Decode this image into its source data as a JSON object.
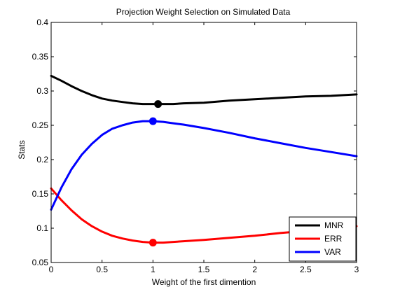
{
  "chart_data": {
    "type": "line",
    "title": "Projection Weight Selection on Simulated Data",
    "xlabel": "Weight of the first dimention",
    "ylabel": "Stats",
    "xlim": [
      0,
      3
    ],
    "ylim": [
      0.05,
      0.4
    ],
    "x_ticks": [
      0,
      0.5,
      1,
      1.5,
      2,
      2.5,
      3
    ],
    "x_tick_labels": [
      "0",
      "0.5",
      "1",
      "1.5",
      "2",
      "2.5",
      "3"
    ],
    "y_ticks": [
      0.05,
      0.1,
      0.15,
      0.2,
      0.25,
      0.3,
      0.35,
      0.4
    ],
    "y_tick_labels": [
      "0.05",
      "0.1",
      "0.15",
      "0.2",
      "0.25",
      "0.3",
      "0.35",
      "0.4"
    ],
    "grid": false,
    "legend_position": "bottom-right",
    "series": [
      {
        "name": "MNR",
        "color": "#000000",
        "x": [
          0,
          0.1,
          0.2,
          0.3,
          0.4,
          0.5,
          0.6,
          0.7,
          0.8,
          0.9,
          1.0,
          1.05,
          1.1,
          1.2,
          1.3,
          1.5,
          1.75,
          2.0,
          2.25,
          2.5,
          2.75,
          3.0
        ],
        "y": [
          0.322,
          0.315,
          0.307,
          0.3,
          0.294,
          0.289,
          0.286,
          0.284,
          0.282,
          0.281,
          0.281,
          0.281,
          0.281,
          0.281,
          0.282,
          0.283,
          0.286,
          0.288,
          0.29,
          0.292,
          0.293,
          0.295
        ],
        "marker": {
          "x": 1.05,
          "y": 0.281
        }
      },
      {
        "name": "ERR",
        "color": "#ff0000",
        "x": [
          0,
          0.1,
          0.2,
          0.3,
          0.4,
          0.5,
          0.6,
          0.7,
          0.8,
          0.9,
          1.0,
          1.1,
          1.2,
          1.3,
          1.5,
          1.75,
          2.0,
          2.25,
          2.5,
          2.75,
          3.0
        ],
        "y": [
          0.158,
          0.141,
          0.126,
          0.113,
          0.103,
          0.095,
          0.089,
          0.085,
          0.082,
          0.08,
          0.079,
          0.079,
          0.08,
          0.081,
          0.083,
          0.086,
          0.089,
          0.093,
          0.096,
          0.1,
          0.103
        ],
        "marker": {
          "x": 1.0,
          "y": 0.079
        }
      },
      {
        "name": "VAR",
        "color": "#0000ff",
        "x": [
          0,
          0.1,
          0.2,
          0.3,
          0.4,
          0.5,
          0.6,
          0.7,
          0.8,
          0.9,
          1.0,
          1.1,
          1.2,
          1.3,
          1.5,
          1.75,
          2.0,
          2.25,
          2.5,
          2.75,
          3.0
        ],
        "y": [
          0.127,
          0.159,
          0.186,
          0.207,
          0.223,
          0.236,
          0.245,
          0.25,
          0.254,
          0.256,
          0.256,
          0.255,
          0.253,
          0.251,
          0.246,
          0.239,
          0.231,
          0.224,
          0.217,
          0.211,
          0.205
        ],
        "marker": {
          "x": 1.0,
          "y": 0.256
        }
      }
    ]
  }
}
